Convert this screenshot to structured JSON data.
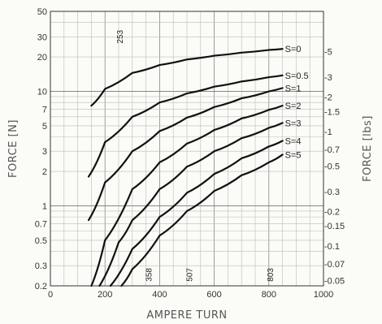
{
  "chart_data": {
    "type": "line",
    "xlabel": "AMPERE TURN",
    "ylabel": "FORCE [N]",
    "y2label": "FORCE [lbs]",
    "xlim": [
      0,
      1000
    ],
    "ylim": [
      0.2,
      50
    ],
    "yscale": "log",
    "grid": true,
    "x_ticks": [
      "0",
      "200",
      "400",
      "600",
      "800",
      "1000"
    ],
    "y_ticks": [
      {
        "value": 0.2,
        "label": "0.2"
      },
      {
        "value": 0.3,
        "label": "0.3"
      },
      {
        "value": 0.5,
        "label": "0.5"
      },
      {
        "value": 0.7,
        "label": "0.7"
      },
      {
        "value": 1,
        "label": "1"
      },
      {
        "value": 2,
        "label": "2"
      },
      {
        "value": 3,
        "label": "3"
      },
      {
        "value": 5,
        "label": "5"
      },
      {
        "value": 7,
        "label": "7"
      },
      {
        "value": 10,
        "label": "10"
      },
      {
        "value": 20,
        "label": "20"
      },
      {
        "value": 30,
        "label": "30"
      },
      {
        "value": 50,
        "label": "50"
      }
    ],
    "y2_ticks": [
      {
        "value": 0.05,
        "label": "-0.05"
      },
      {
        "value": 0.07,
        "label": "-0.07"
      },
      {
        "value": 0.1,
        "label": "-0.1"
      },
      {
        "value": 0.15,
        "label": "-0.15"
      },
      {
        "value": 0.2,
        "label": "-0.2"
      },
      {
        "value": 0.3,
        "label": "-0.3"
      },
      {
        "value": 0.5,
        "label": "-0.5"
      },
      {
        "value": 0.7,
        "label": "-0.7"
      },
      {
        "value": 1,
        "label": "-1"
      },
      {
        "value": 1.5,
        "label": "-1.5"
      },
      {
        "value": 2,
        "label": "-2"
      },
      {
        "value": 3,
        "label": "-3"
      },
      {
        "value": 5,
        "label": "-5"
      }
    ],
    "annotations": [
      "253",
      "358",
      "507",
      "803"
    ],
    "series": [
      {
        "name": "S=0",
        "x": [
          150,
          200,
          300,
          400,
          500,
          600,
          700,
          800,
          850
        ],
        "y": [
          7.5,
          10.5,
          14.5,
          17.0,
          19.0,
          20.5,
          21.8,
          23.0,
          23.5
        ]
      },
      {
        "name": "S=0.5",
        "x": [
          140,
          200,
          300,
          400,
          500,
          600,
          700,
          800,
          850
        ],
        "y": [
          1.8,
          3.6,
          6.0,
          8.0,
          9.6,
          11.0,
          12.2,
          13.3,
          13.8
        ]
      },
      {
        "name": "S=1",
        "x": [
          140,
          200,
          300,
          400,
          500,
          600,
          700,
          800,
          850
        ],
        "y": [
          0.75,
          1.6,
          3.0,
          4.5,
          5.9,
          7.3,
          8.7,
          10.0,
          10.7
        ]
      },
      {
        "name": "S=2",
        "x": [
          150,
          200,
          300,
          400,
          500,
          600,
          700,
          800,
          850
        ],
        "y": [
          0.2,
          0.5,
          1.4,
          2.4,
          3.5,
          4.6,
          5.8,
          6.9,
          7.5
        ]
      },
      {
        "name": "S=3",
        "x": [
          180,
          250,
          300,
          400,
          500,
          600,
          700,
          800,
          850
        ],
        "y": [
          0.2,
          0.48,
          0.75,
          1.4,
          2.2,
          3.0,
          3.9,
          4.8,
          5.3
        ]
      },
      {
        "name": "S=4",
        "x": [
          220,
          300,
          400,
          500,
          600,
          700,
          800,
          850
        ],
        "y": [
          0.2,
          0.42,
          0.8,
          1.3,
          1.9,
          2.6,
          3.3,
          3.7
        ]
      },
      {
        "name": "S=5",
        "x": [
          260,
          300,
          400,
          500,
          600,
          700,
          800,
          850
        ],
        "y": [
          0.2,
          0.28,
          0.55,
          0.9,
          1.35,
          1.85,
          2.4,
          2.8
        ]
      }
    ]
  }
}
